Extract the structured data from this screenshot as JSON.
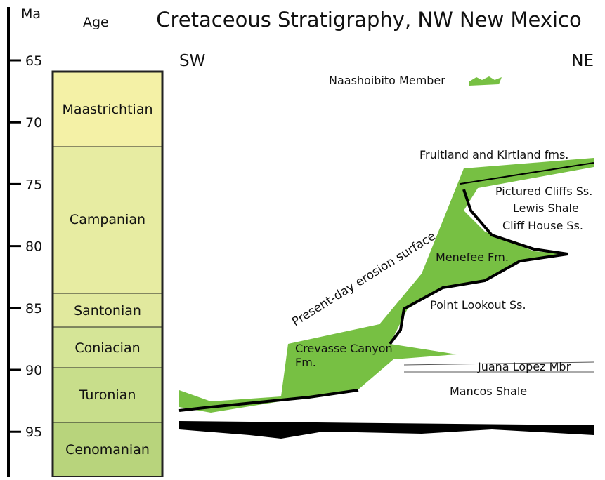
{
  "header": {
    "title": "Cretaceous Stratigraphy, NW New Mexico",
    "axis_label": "Ma",
    "age_label": "Age"
  },
  "axis": {
    "ticks": [
      "65",
      "70",
      "75",
      "80",
      "85",
      "90",
      "95"
    ]
  },
  "stages": [
    "Maastrichtian",
    "Campanian",
    "Santonian",
    "Coniacian",
    "Turonian",
    "Cenomanian"
  ],
  "directions": {
    "left": "SW",
    "right": "NE"
  },
  "legend": {
    "label": "Naashoibito Member"
  },
  "labels": {
    "surface": "Present-day erosion surface",
    "fruitland": "Fruitland and Kirtland fms.",
    "pictured": "Pictured Cliffs Ss.",
    "lewis": "Lewis Shale",
    "cliff": "Cliff House Ss.",
    "menefee": "Menefee Fm.",
    "point": "Point Lookout Ss.",
    "crevasse": "Crevasse Canyon",
    "crevasse2": "Fm.",
    "juana": "Juana Lopez Mbr",
    "mancos": "Mancos Shale"
  }
}
